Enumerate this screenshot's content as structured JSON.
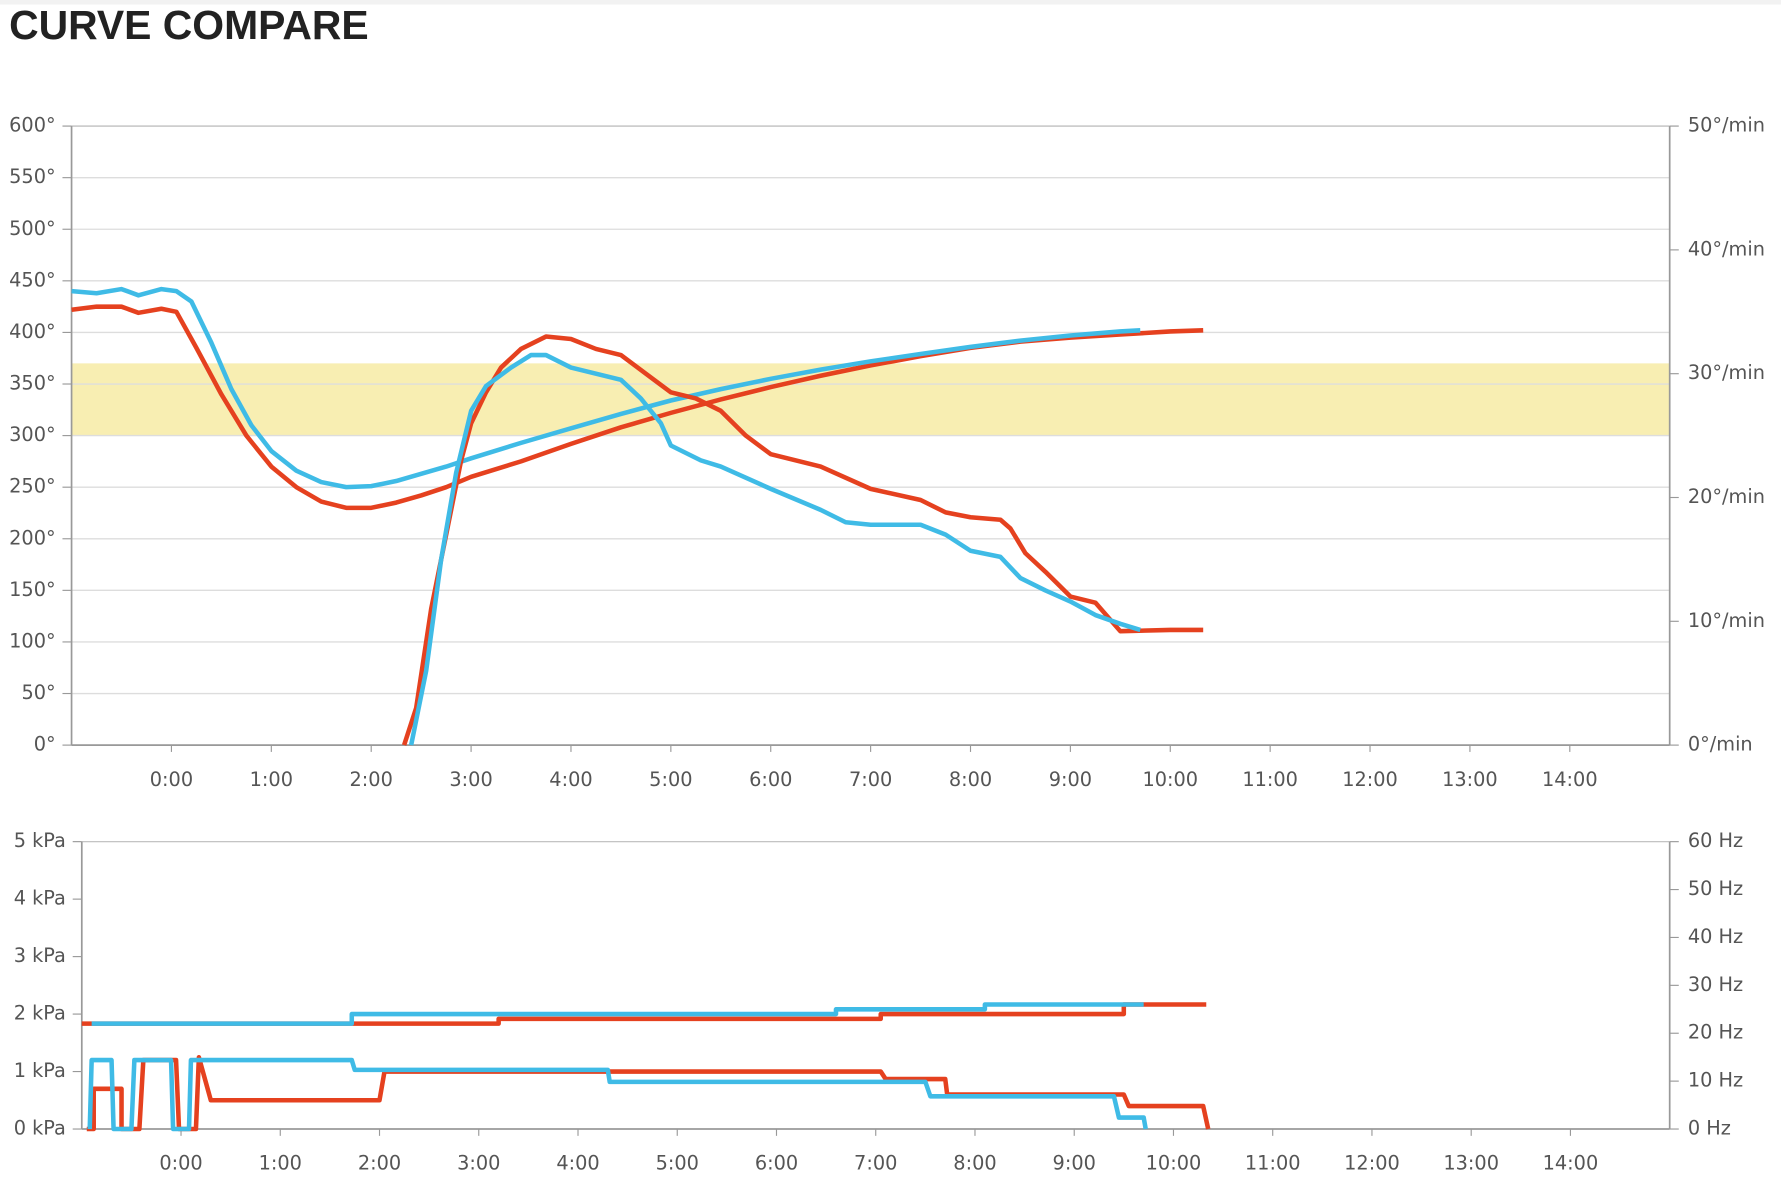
{
  "title": "CURVE COMPARE",
  "chart_data": [
    {
      "type": "line",
      "grid": true,
      "xlim": [
        -1,
        15
      ],
      "xticks": [
        {
          "value": 0,
          "label": "0:00"
        },
        {
          "value": 1,
          "label": "1:00"
        },
        {
          "value": 2,
          "label": "2:00"
        },
        {
          "value": 3,
          "label": "3:00"
        },
        {
          "value": 4,
          "label": "4:00"
        },
        {
          "value": 5,
          "label": "5:00"
        },
        {
          "value": 6,
          "label": "6:00"
        },
        {
          "value": 7,
          "label": "7:00"
        },
        {
          "value": 8,
          "label": "8:00"
        },
        {
          "value": 9,
          "label": "9:00"
        },
        {
          "value": 10,
          "label": "10:00"
        },
        {
          "value": 11,
          "label": "11:00"
        },
        {
          "value": 12,
          "label": "12:00"
        },
        {
          "value": 13,
          "label": "13:00"
        },
        {
          "value": 14,
          "label": "14:00"
        }
      ],
      "ylim": [
        0,
        600
      ],
      "yticks": [
        {
          "value": 0,
          "label": "0°"
        },
        {
          "value": 50,
          "label": "50°"
        },
        {
          "value": 100,
          "label": "100°"
        },
        {
          "value": 150,
          "label": "150°"
        },
        {
          "value": 200,
          "label": "200°"
        },
        {
          "value": 250,
          "label": "250°"
        },
        {
          "value": 300,
          "label": "300°"
        },
        {
          "value": 350,
          "label": "350°"
        },
        {
          "value": 400,
          "label": "400°"
        },
        {
          "value": 450,
          "label": "450°"
        },
        {
          "value": 500,
          "label": "500°"
        },
        {
          "value": 550,
          "label": "550°"
        },
        {
          "value": 600,
          "label": "600°"
        }
      ],
      "y2lim": [
        0,
        50
      ],
      "y2ticks": [
        {
          "value": 0,
          "label": "0°/min"
        },
        {
          "value": 10,
          "label": "10°/min"
        },
        {
          "value": 20,
          "label": "20°/min"
        },
        {
          "value": 30,
          "label": "30°/min"
        },
        {
          "value": 40,
          "label": "40°/min"
        },
        {
          "value": 50,
          "label": "50°/min"
        }
      ],
      "band": [
        300,
        370
      ],
      "band_color": "#f8eeb2",
      "series": [
        {
          "color": "#e5411f",
          "axis": "y",
          "x": [
            -1,
            -0.75,
            -0.5,
            -0.33,
            -0.1,
            0.05,
            0.25,
            0.5,
            0.75,
            1,
            1.25,
            1.5,
            1.75,
            2,
            2.25,
            2.5,
            2.75,
            3,
            3.5,
            4,
            4.5,
            5,
            5.5,
            6,
            6.5,
            7,
            7.5,
            8,
            8.5,
            9,
            9.5,
            10,
            10.33
          ],
          "values": [
            422,
            425,
            425,
            419,
            423,
            420,
            385,
            340,
            300,
            270,
            250,
            236,
            230,
            230,
            235,
            242,
            250,
            260,
            275,
            292,
            308,
            322,
            335,
            347,
            358,
            368,
            377,
            385,
            391,
            395,
            398,
            401,
            402
          ]
        },
        {
          "color": "#3fbbe6",
          "axis": "y",
          "x": [
            -1,
            -0.75,
            -0.5,
            -0.33,
            -0.1,
            0.05,
            0.2,
            0.4,
            0.6,
            0.8,
            1,
            1.25,
            1.5,
            1.75,
            2,
            2.25,
            2.5,
            2.75,
            3,
            3.5,
            4,
            4.5,
            5,
            5.5,
            6,
            6.5,
            7,
            7.5,
            8,
            8.5,
            9,
            9.5,
            9.7
          ],
          "values": [
            440,
            438,
            442,
            436,
            442,
            440,
            430,
            390,
            345,
            310,
            285,
            266,
            255,
            250,
            251,
            256,
            263,
            270,
            278,
            293,
            307,
            321,
            334,
            345,
            355,
            364,
            372,
            379,
            386,
            392,
            397,
            401,
            402
          ]
        },
        {
          "color": "#e5411f",
          "axis": "y2",
          "x": [
            2.33,
            2.45,
            2.6,
            2.75,
            2.9,
            3,
            3.15,
            3.3,
            3.5,
            3.75,
            4,
            4.25,
            4.5,
            4.75,
            5,
            5.25,
            5.5,
            5.75,
            6,
            6.5,
            7,
            7.5,
            7.75,
            8,
            8.3,
            8.4,
            8.55,
            8.75,
            9,
            9.25,
            9.5,
            10,
            10.33
          ],
          "values": [
            0,
            3,
            11,
            17,
            23,
            26,
            28.5,
            30.5,
            32,
            33,
            32.8,
            32,
            31.5,
            30,
            28.5,
            28,
            27,
            25,
            23.5,
            22.5,
            20.7,
            19.8,
            18.8,
            18.4,
            18.2,
            17.5,
            15.5,
            14,
            12,
            11.5,
            9.2,
            9.3,
            9.3
          ]
        },
        {
          "color": "#3fbbe6",
          "axis": "y2",
          "x": [
            2.4,
            2.55,
            2.7,
            2.85,
            3,
            3.15,
            3.4,
            3.6,
            3.75,
            4,
            4.5,
            4.7,
            4.9,
            5,
            5.3,
            5.5,
            6,
            6.5,
            6.75,
            7,
            7.5,
            7.75,
            8,
            8.3,
            8.5,
            8.75,
            9,
            9.25,
            9.5,
            9.7
          ],
          "values": [
            0,
            6,
            15,
            22,
            27,
            29,
            30.5,
            31.5,
            31.5,
            30.5,
            29.5,
            28,
            26,
            24.2,
            23,
            22.5,
            20.7,
            19,
            18,
            17.8,
            17.8,
            17,
            15.7,
            15.2,
            13.5,
            12.5,
            11.6,
            10.5,
            9.8,
            9.3
          ]
        }
      ]
    },
    {
      "type": "line",
      "grid": false,
      "xlim": [
        -1,
        15
      ],
      "xticks": [
        {
          "value": 0,
          "label": "0:00"
        },
        {
          "value": 1,
          "label": "1:00"
        },
        {
          "value": 2,
          "label": "2:00"
        },
        {
          "value": 3,
          "label": "3:00"
        },
        {
          "value": 4,
          "label": "4:00"
        },
        {
          "value": 5,
          "label": "5:00"
        },
        {
          "value": 6,
          "label": "6:00"
        },
        {
          "value": 7,
          "label": "7:00"
        },
        {
          "value": 8,
          "label": "8:00"
        },
        {
          "value": 9,
          "label": "9:00"
        },
        {
          "value": 10,
          "label": "10:00"
        },
        {
          "value": 11,
          "label": "11:00"
        },
        {
          "value": 12,
          "label": "12:00"
        },
        {
          "value": 13,
          "label": "13:00"
        },
        {
          "value": 14,
          "label": "14:00"
        }
      ],
      "ylim": [
        0,
        5
      ],
      "yticks": [
        {
          "value": 0,
          "label": "0 kPa"
        },
        {
          "value": 1,
          "label": "1 kPa"
        },
        {
          "value": 2,
          "label": "2 kPa"
        },
        {
          "value": 3,
          "label": "3 kPa"
        },
        {
          "value": 4,
          "label": "4 kPa"
        },
        {
          "value": 5,
          "label": "5 kPa"
        }
      ],
      "y2lim": [
        0,
        60
      ],
      "y2ticks": [
        {
          "value": 0,
          "label": "0 Hz"
        },
        {
          "value": 10,
          "label": "10 Hz"
        },
        {
          "value": 20,
          "label": "20 Hz"
        },
        {
          "value": 30,
          "label": "30 Hz"
        },
        {
          "value": 40,
          "label": "40 Hz"
        },
        {
          "value": 50,
          "label": "50 Hz"
        },
        {
          "value": 60,
          "label": "60 Hz"
        }
      ],
      "series": [
        {
          "color": "#e5411f",
          "axis": "y2",
          "x": [
            -1,
            3.2,
            3.2,
            7.05,
            7.05,
            9.5,
            9.5,
            10.33
          ],
          "values": [
            22,
            22,
            23,
            23,
            24,
            24,
            26,
            26
          ]
        },
        {
          "color": "#3fbbe6",
          "axis": "y2",
          "x": [
            -0.9,
            1.72,
            1.72,
            6.6,
            6.6,
            8.1,
            8.1,
            9.7
          ],
          "values": [
            22,
            22,
            24,
            24,
            25,
            25,
            26,
            26
          ]
        },
        {
          "color": "#e5411f",
          "axis": "y",
          "x": [
            -0.95,
            -0.88,
            -0.88,
            -0.6,
            -0.6,
            -0.42,
            -0.38,
            -0.05,
            -0.02,
            0.15,
            0.18,
            0.3,
            2.0,
            2.05,
            7.05,
            7.1,
            7.7,
            7.72,
            9.5,
            9.55,
            10.3,
            10.35
          ],
          "values": [
            0,
            0,
            0.7,
            0.7,
            0,
            0,
            1.2,
            1.2,
            0,
            0,
            1.25,
            0.5,
            0.5,
            1.0,
            1.0,
            0.87,
            0.87,
            0.6,
            0.6,
            0.4,
            0.4,
            0
          ]
        },
        {
          "color": "#3fbbe6",
          "axis": "y",
          "x": [
            -0.92,
            -0.9,
            -0.7,
            -0.68,
            -0.5,
            -0.47,
            -0.1,
            -0.08,
            0.08,
            0.1,
            1.72,
            1.75,
            4.3,
            4.32,
            7.5,
            7.55,
            9.4,
            9.45,
            9.7,
            9.72
          ],
          "values": [
            0,
            1.2,
            1.2,
            0,
            0,
            1.2,
            1.2,
            0,
            0,
            1.2,
            1.2,
            1.03,
            1.03,
            0.82,
            0.82,
            0.57,
            0.57,
            0.2,
            0.2,
            0
          ]
        }
      ]
    }
  ]
}
